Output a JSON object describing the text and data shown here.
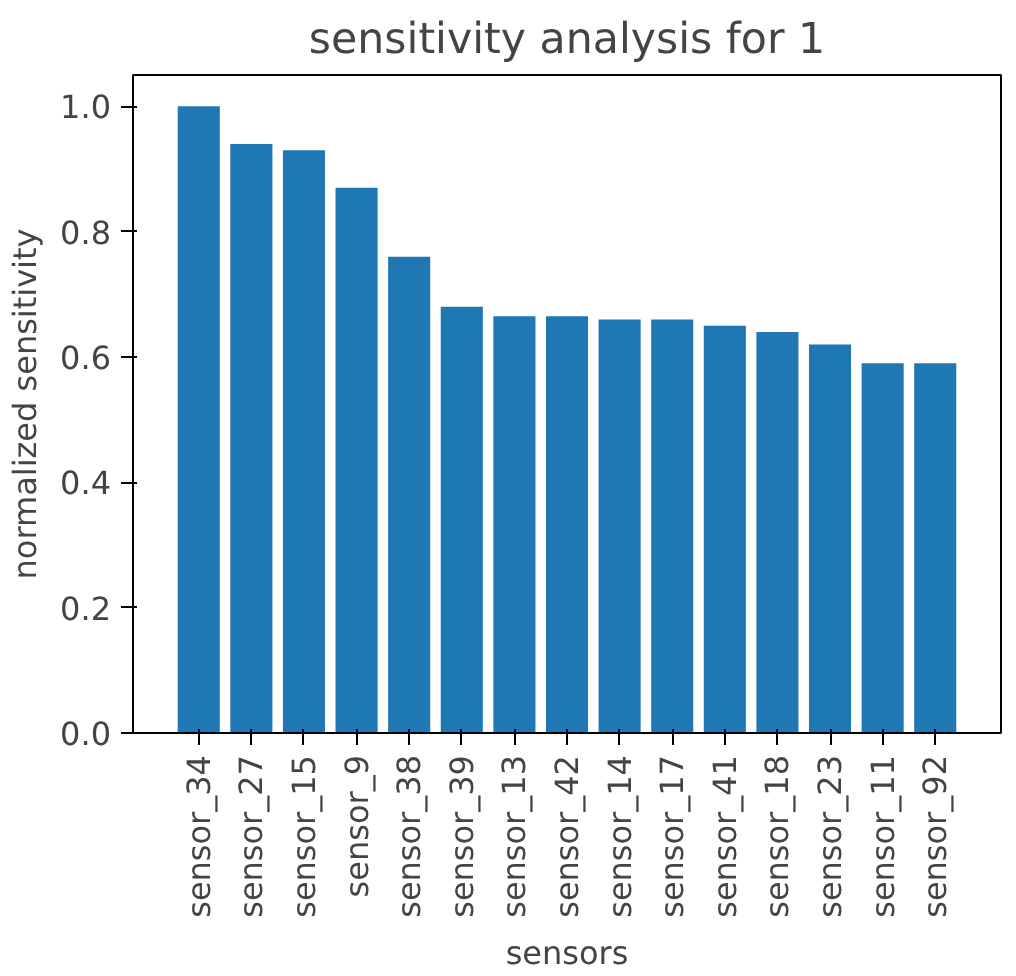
{
  "chart_data": {
    "type": "bar",
    "title": "sensitivity analysis for 1",
    "xlabel": "sensors",
    "ylabel": "normalized sensitivity",
    "categories": [
      "sensor_34",
      "sensor_27",
      "sensor_15",
      "sensor_9",
      "sensor_38",
      "sensor_39",
      "sensor_13",
      "sensor_42",
      "sensor_14",
      "sensor_17",
      "sensor_41",
      "sensor_18",
      "sensor_23",
      "sensor_11",
      "sensor_92"
    ],
    "values": [
      1.0,
      0.94,
      0.93,
      0.87,
      0.76,
      0.68,
      0.665,
      0.665,
      0.66,
      0.66,
      0.65,
      0.64,
      0.62,
      0.59,
      0.59
    ],
    "color": "#1f77b4",
    "ylim": [
      0,
      1.05
    ],
    "yticks": [
      {
        "value": 0,
        "label": "0.0"
      },
      0.2,
      0.4,
      0.6,
      0.8,
      {
        "value": 1,
        "label": "1.0"
      }
    ],
    "grid": false
  }
}
